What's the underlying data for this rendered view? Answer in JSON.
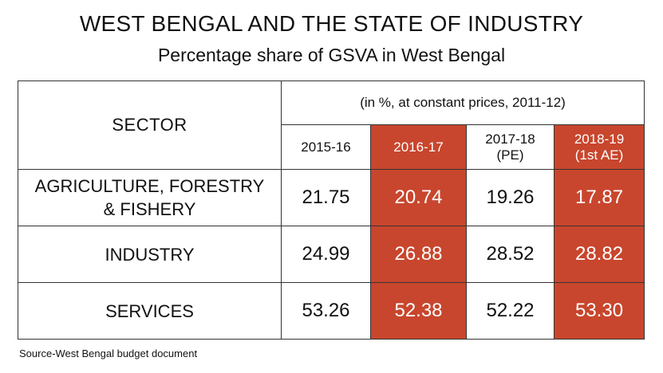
{
  "title": "WEST BENGAL AND THE STATE OF INDUSTRY",
  "subtitle": "Percentage share of GSVA in West Bengal",
  "source": "Source-West Bengal budget document",
  "colors": {
    "highlight": "#c8462d",
    "text": "#111111",
    "border": "#333333"
  },
  "chart_data": {
    "type": "table",
    "title": "WEST BENGAL AND THE STATE OF INDUSTRY",
    "subtitle": "Percentage share of GSVA in West Bengal",
    "unit_note": "(in %, at constant prices, 2011-12)",
    "row_header": "SECTOR",
    "columns": [
      {
        "line1": "2015-16",
        "line2": "",
        "highlighted": false
      },
      {
        "line1": "2016-17",
        "line2": "",
        "highlighted": true
      },
      {
        "line1": "2017-18",
        "line2": "(PE)",
        "highlighted": false
      },
      {
        "line1": "2018-19",
        "line2": "(1st AE)",
        "highlighted": true
      }
    ],
    "rows": [
      {
        "sector_line1": "AGRICULTURE, FORESTRY",
        "sector_line2": "& FISHERY",
        "values": [
          "21.75",
          "20.74",
          "19.26",
          "17.87"
        ]
      },
      {
        "sector_line1": "INDUSTRY",
        "sector_line2": "",
        "values": [
          "24.99",
          "26.88",
          "28.52",
          "28.82"
        ]
      },
      {
        "sector_line1": "SERVICES",
        "sector_line2": "",
        "values": [
          "53.26",
          "52.38",
          "52.22",
          "53.30"
        ]
      }
    ]
  }
}
